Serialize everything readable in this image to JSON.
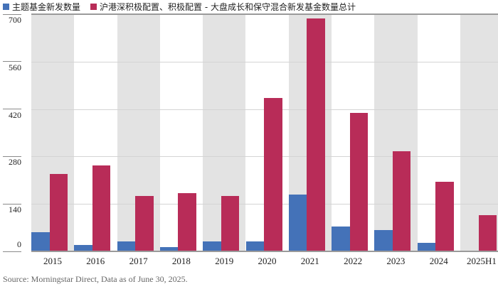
{
  "chart_data": {
    "type": "bar",
    "title": "",
    "xlabel": "",
    "ylabel": "",
    "ylim": [
      0,
      700
    ],
    "yticks": [
      0,
      140,
      280,
      420,
      560,
      700
    ],
    "grid": true,
    "legend_position": "top-left",
    "categories": [
      "2015",
      "2016",
      "2017",
      "2018",
      "2019",
      "2020",
      "2021",
      "2022",
      "2023",
      "2024",
      "2025H1"
    ],
    "series": [
      {
        "name": "主题基金新发数量",
        "color": "#4472b8",
        "values": [
          57,
          19,
          29,
          12,
          29,
          29,
          168,
          73,
          63,
          25,
          0
        ]
      },
      {
        "name": "沪港深积极配置、积极配置 - 大盘成长和保守混合新发基金数量总计",
        "color": "#b82c58",
        "values": [
          229,
          254,
          163,
          172,
          163,
          453,
          688,
          409,
          296,
          205,
          107
        ]
      }
    ],
    "annotations": [
      "Source: Morningstar Direct, Data as of June 30, 2025."
    ]
  },
  "legend": {
    "items": [
      {
        "label": "主题基金新发数量",
        "color": "#4472b8"
      },
      {
        "label": "沪港深积极配置、积极配置 - 大盘成长和保守混合新发基金数量总计",
        "color": "#b82c58"
      }
    ]
  },
  "source": "Source: Morningstar Direct,  Data as of June 30, 2025."
}
